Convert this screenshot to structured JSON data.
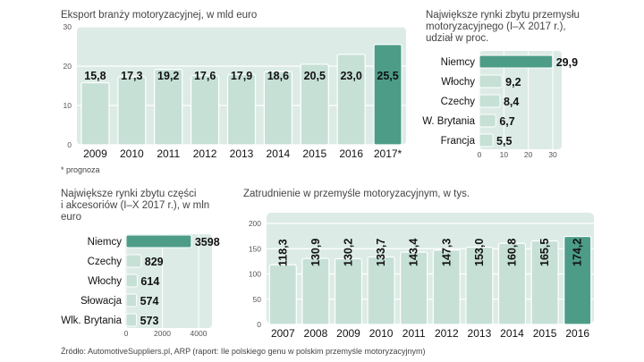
{
  "colors": {
    "panel": "#dcebe6",
    "bar": "#c6e0d6",
    "bar_stroke": "#ffffff",
    "highlight": "#4c9c88",
    "grid": "#ffffff",
    "text": "#111111"
  },
  "chart_data": [
    {
      "id": "export",
      "type": "bar",
      "title": "Eksport branży motoryzacyjnej, w mld euro",
      "categories": [
        "2009",
        "2010",
        "2011",
        "2012",
        "2013",
        "2014",
        "2015",
        "2016",
        "2017*"
      ],
      "values": [
        15.8,
        17.3,
        19.2,
        17.6,
        17.9,
        18.6,
        20.5,
        23.0,
        25.5
      ],
      "value_labels": [
        "15,8",
        "17,3",
        "19,2",
        "17,6",
        "17,9",
        "18,6",
        "20,5",
        "23,0",
        "25,5"
      ],
      "highlight_index": 8,
      "ylim": [
        0,
        30
      ],
      "yticks": [
        0,
        10,
        20,
        30
      ],
      "note": "* prognoza"
    },
    {
      "id": "markets",
      "type": "bar",
      "orientation": "horizontal",
      "title_lines": [
        "Największe rynki zbytu przemysłu",
        "motoryzacyjnego (I–X 2017 r.),",
        "udział w proc."
      ],
      "categories": [
        "Niemcy",
        "Włochy",
        "Czechy",
        "W. Brytania",
        "Francja"
      ],
      "values": [
        29.9,
        9.2,
        8.4,
        6.7,
        5.5
      ],
      "value_labels": [
        "29,9",
        "9,2",
        "8,4",
        "6,7",
        "5,5"
      ],
      "highlight_index": 0,
      "xlim": [
        0,
        30
      ],
      "xticks": [
        0,
        10,
        20,
        30
      ]
    },
    {
      "id": "parts",
      "type": "bar",
      "orientation": "horizontal",
      "title_lines": [
        "Największe rynki zbytu części",
        "i akcesoriów (I–X 2017 r.), w mln",
        "euro"
      ],
      "categories": [
        "Niemcy",
        "Czechy",
        "Włochy",
        "Słowacja",
        "Wlk. Brytania"
      ],
      "values": [
        3598,
        829,
        614,
        574,
        573
      ],
      "value_labels": [
        "3598",
        "829",
        "614",
        "574",
        "573"
      ],
      "highlight_index": 0,
      "xlim": [
        0,
        4000
      ],
      "xticks": [
        0,
        2000,
        4000
      ]
    },
    {
      "id": "employment",
      "type": "bar",
      "title": "Zatrudnienie w przemyśle motoryzacyjnym, w tys.",
      "categories": [
        "2007",
        "2008",
        "2009",
        "2010",
        "2011",
        "2012",
        "2013",
        "2014",
        "2015",
        "2016"
      ],
      "values": [
        118.3,
        130.9,
        130.2,
        133.7,
        143.4,
        147.3,
        153.0,
        160.8,
        165.5,
        174.2
      ],
      "value_labels": [
        "118,3",
        "130,9",
        "130,2",
        "133,7",
        "143,4",
        "147,3",
        "153,0",
        "160,8",
        "165,5",
        "174,2"
      ],
      "highlight_index": 9,
      "ylim": [
        0,
        200
      ],
      "yticks": [
        0,
        50,
        100,
        150,
        200
      ]
    }
  ],
  "source": "Źródło: AutomotiveSuppliers.pl, ARP (raport: Ile polskiego genu w polskim przemyśle motoryzacyjnym)"
}
